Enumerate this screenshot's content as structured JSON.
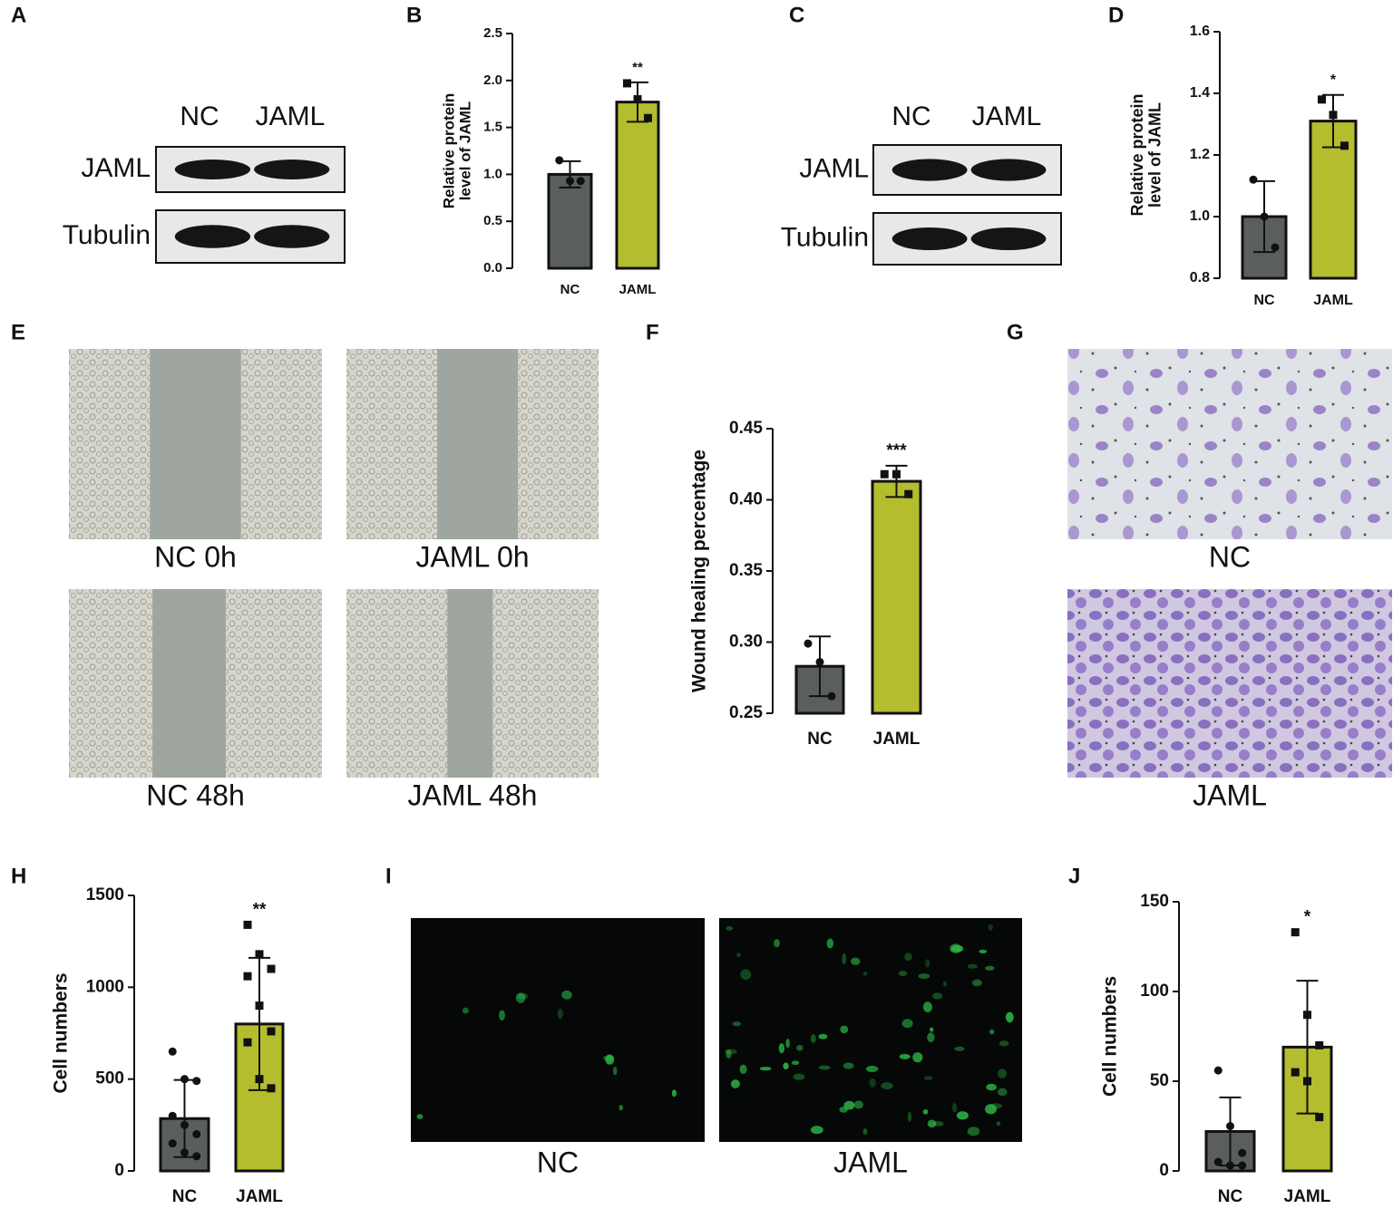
{
  "panel_labels": [
    "A",
    "B",
    "C",
    "D",
    "E",
    "F",
    "G",
    "H",
    "I",
    "J"
  ],
  "blots": [
    {
      "lanes": [
        "NC",
        "JAML"
      ],
      "rows": [
        "JAML",
        "Tubulin"
      ]
    },
    {
      "lanes": [
        "NC",
        "JAML"
      ],
      "rows": [
        "JAML",
        "Tubulin"
      ]
    }
  ],
  "wound_images": [
    "NC 0h",
    "JAML 0h",
    "NC 48h",
    "JAML 48h"
  ],
  "transwell_images": [
    "NC",
    "JAML"
  ],
  "fluorescence_images": [
    "NC",
    "JAML"
  ],
  "chart_data": [
    {
      "type": "bar",
      "y_label": [
        "Relative protein",
        "level of JAML"
      ],
      "categories": [
        "NC",
        "JAML"
      ],
      "values": [
        1.0,
        1.77
      ],
      "errors": [
        0.14,
        0.21
      ],
      "colors": [
        "#5a5e5e",
        "#b4bd2e"
      ],
      "markers": [
        "circle",
        "square"
      ],
      "points": [
        [
          1.15,
          0.93,
          0.93
        ],
        [
          1.97,
          1.8,
          1.6
        ]
      ],
      "significance": "**",
      "ylim": [
        0,
        2.5
      ],
      "yticks": [
        {
          "value": 0,
          "label": "0.0"
        },
        0.5,
        {
          "value": 1,
          "label": "1.0"
        },
        1.5,
        {
          "value": 2,
          "label": "2.0"
        },
        2.5
      ]
    },
    {
      "type": "bar",
      "y_label": [
        "Relative protein",
        "level of JAML"
      ],
      "categories": [
        "NC",
        "JAML"
      ],
      "values": [
        1.0,
        1.31
      ],
      "errors": [
        0.115,
        0.085
      ],
      "colors": [
        "#5a5e5e",
        "#b4bd2e"
      ],
      "markers": [
        "circle",
        "square"
      ],
      "points": [
        [
          1.12,
          1.0,
          0.9
        ],
        [
          1.38,
          1.33,
          1.23
        ]
      ],
      "significance": "*",
      "ylim": [
        0.8,
        1.6
      ],
      "yticks": [
        0.8,
        {
          "value": 1,
          "label": "1.0"
        },
        1.2,
        1.4,
        1.6
      ]
    },
    {
      "type": "bar",
      "y_label": [
        "Wound healing percentage"
      ],
      "categories": [
        "NC",
        "JAML"
      ],
      "values": [
        0.283,
        0.413
      ],
      "errors": [
        0.021,
        0.011
      ],
      "colors": [
        "#5a5e5e",
        "#b4bd2e"
      ],
      "markers": [
        "circle",
        "square"
      ],
      "points": [
        [
          0.299,
          0.286,
          0.262
        ],
        [
          0.418,
          0.418,
          0.404
        ]
      ],
      "significance": "***",
      "ylim": [
        0.25,
        0.45
      ],
      "yticks": [
        0.25,
        {
          "value": 0.3,
          "label": "0.30"
        },
        0.35,
        {
          "value": 0.4,
          "label": "0.40"
        },
        0.45
      ]
    },
    {
      "type": "bar",
      "y_label": [
        "Cell numbers"
      ],
      "categories": [
        "NC",
        "JAML"
      ],
      "values": [
        285,
        800
      ],
      "errors": [
        210,
        360
      ],
      "colors": [
        "#5a5e5e",
        "#b4bd2e"
      ],
      "markers": [
        "circle",
        "square"
      ],
      "points": [
        [
          650,
          500,
          490,
          300,
          250,
          200,
          150,
          100,
          80
        ],
        [
          1340,
          1180,
          1100,
          1060,
          900,
          760,
          700,
          500,
          450
        ]
      ],
      "significance": "**",
      "ylim": [
        0,
        1500
      ],
      "yticks": [
        0,
        500,
        1000,
        1500
      ]
    },
    {
      "type": "bar",
      "y_label": [
        "Cell numbers"
      ],
      "categories": [
        "NC",
        "JAML"
      ],
      "values": [
        22,
        69
      ],
      "errors": [
        19,
        37
      ],
      "colors": [
        "#5a5e5e",
        "#b4bd2e"
      ],
      "markers": [
        "circle",
        "square"
      ],
      "points": [
        [
          56,
          25,
          10,
          5,
          3,
          3
        ],
        [
          133,
          87,
          70,
          55,
          50,
          30
        ]
      ],
      "significance": "*",
      "ylim": [
        0,
        150
      ],
      "yticks": [
        0,
        50,
        100,
        150
      ]
    }
  ]
}
